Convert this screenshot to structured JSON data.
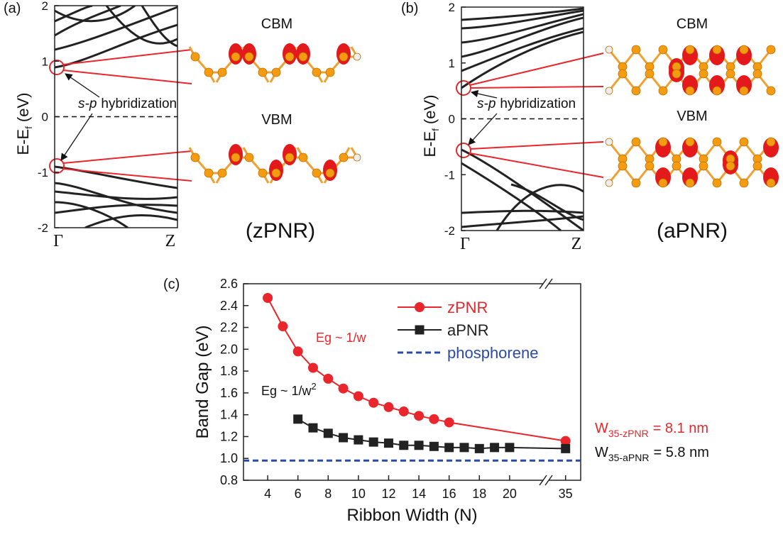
{
  "chart_data": [
    {
      "type": "band",
      "label": "(a)",
      "ylabel": "E-E",
      "ylabel_sub": "f",
      "ylabel_unit": "(eV)",
      "ylim": [
        -2,
        2
      ],
      "yticks": [
        -2,
        -1,
        0,
        1,
        2
      ],
      "fermi_line": true,
      "categories": [
        "Γ",
        "Z"
      ],
      "cbm": "CBM",
      "vbm": "VBM",
      "hybrid_italic": "s-p",
      "hybrid": "hybridization",
      "name": "(zPNR)"
    },
    {
      "type": "band",
      "label": "(b)",
      "ylabel": "E-E",
      "ylabel_sub": "f",
      "ylabel_unit": "(eV)",
      "ylim": [
        -2,
        2
      ],
      "yticks": [
        -2,
        -1,
        0,
        1,
        2
      ],
      "fermi_line": true,
      "categories": [
        "Γ",
        "Z"
      ],
      "cbm": "CBM",
      "vbm": "VBM",
      "hybrid_italic": "s-p",
      "hybrid": "hybridization",
      "name": "(aPNR)"
    },
    {
      "type": "line",
      "label": "(c)",
      "xlabel": "Ribbon Width (N)",
      "ylabel": "Band Gap (eV)",
      "xlim": [
        2.4,
        36
      ],
      "xbreak": [
        22.4,
        33.7
      ],
      "xticks": [
        4,
        6,
        8,
        10,
        12,
        14,
        16,
        18,
        20,
        35
      ],
      "ylim": [
        0.8,
        2.6
      ],
      "yticks": [
        0.8,
        {
          "value": 1,
          "label": "1.0"
        },
        1.2,
        1.4,
        1.6,
        1.8,
        {
          "value": 2,
          "label": "2.0"
        },
        2.2,
        2.4,
        2.6
      ],
      "legend": "upper right",
      "series": [
        {
          "name": "zPNR",
          "color": "#e8262b",
          "marker": "circle",
          "x": [
            4,
            5,
            6,
            7,
            8,
            9,
            10,
            11,
            12,
            13,
            14,
            15,
            16,
            35
          ],
          "values": [
            2.47,
            2.21,
            1.98,
            1.83,
            1.73,
            1.64,
            1.57,
            1.51,
            1.47,
            1.43,
            1.39,
            1.36,
            1.33,
            1.16
          ]
        },
        {
          "name": "aPNR",
          "color": "#222222",
          "marker": "square",
          "x": [
            6,
            7,
            8,
            9,
            10,
            11,
            12,
            13,
            14,
            15,
            16,
            17,
            18,
            19,
            20,
            35
          ],
          "values": [
            1.36,
            1.28,
            1.23,
            1.19,
            1.17,
            1.15,
            1.14,
            1.12,
            1.12,
            1.11,
            1.1,
            1.1,
            1.09,
            1.1,
            1.1,
            1.09
          ]
        },
        {
          "name": "phosphorene",
          "color": "#2b4aa6",
          "dashed": true,
          "values": [
            0.98
          ]
        }
      ],
      "annotations": [
        {
          "text": "Eg ~ 1/w",
          "color": "#e8262b"
        },
        {
          "text": "Eg ~ 1/w",
          "sup": "2",
          "color": "#111111"
        }
      ],
      "notes": [
        {
          "main": "W",
          "sub": "35-zPNR",
          "rest": "= 8.1 nm",
          "color": "#e8262b"
        },
        {
          "main": "W",
          "sub": "35-aPNR",
          "rest": "= 5.8 nm",
          "color": "#111111"
        }
      ]
    }
  ]
}
